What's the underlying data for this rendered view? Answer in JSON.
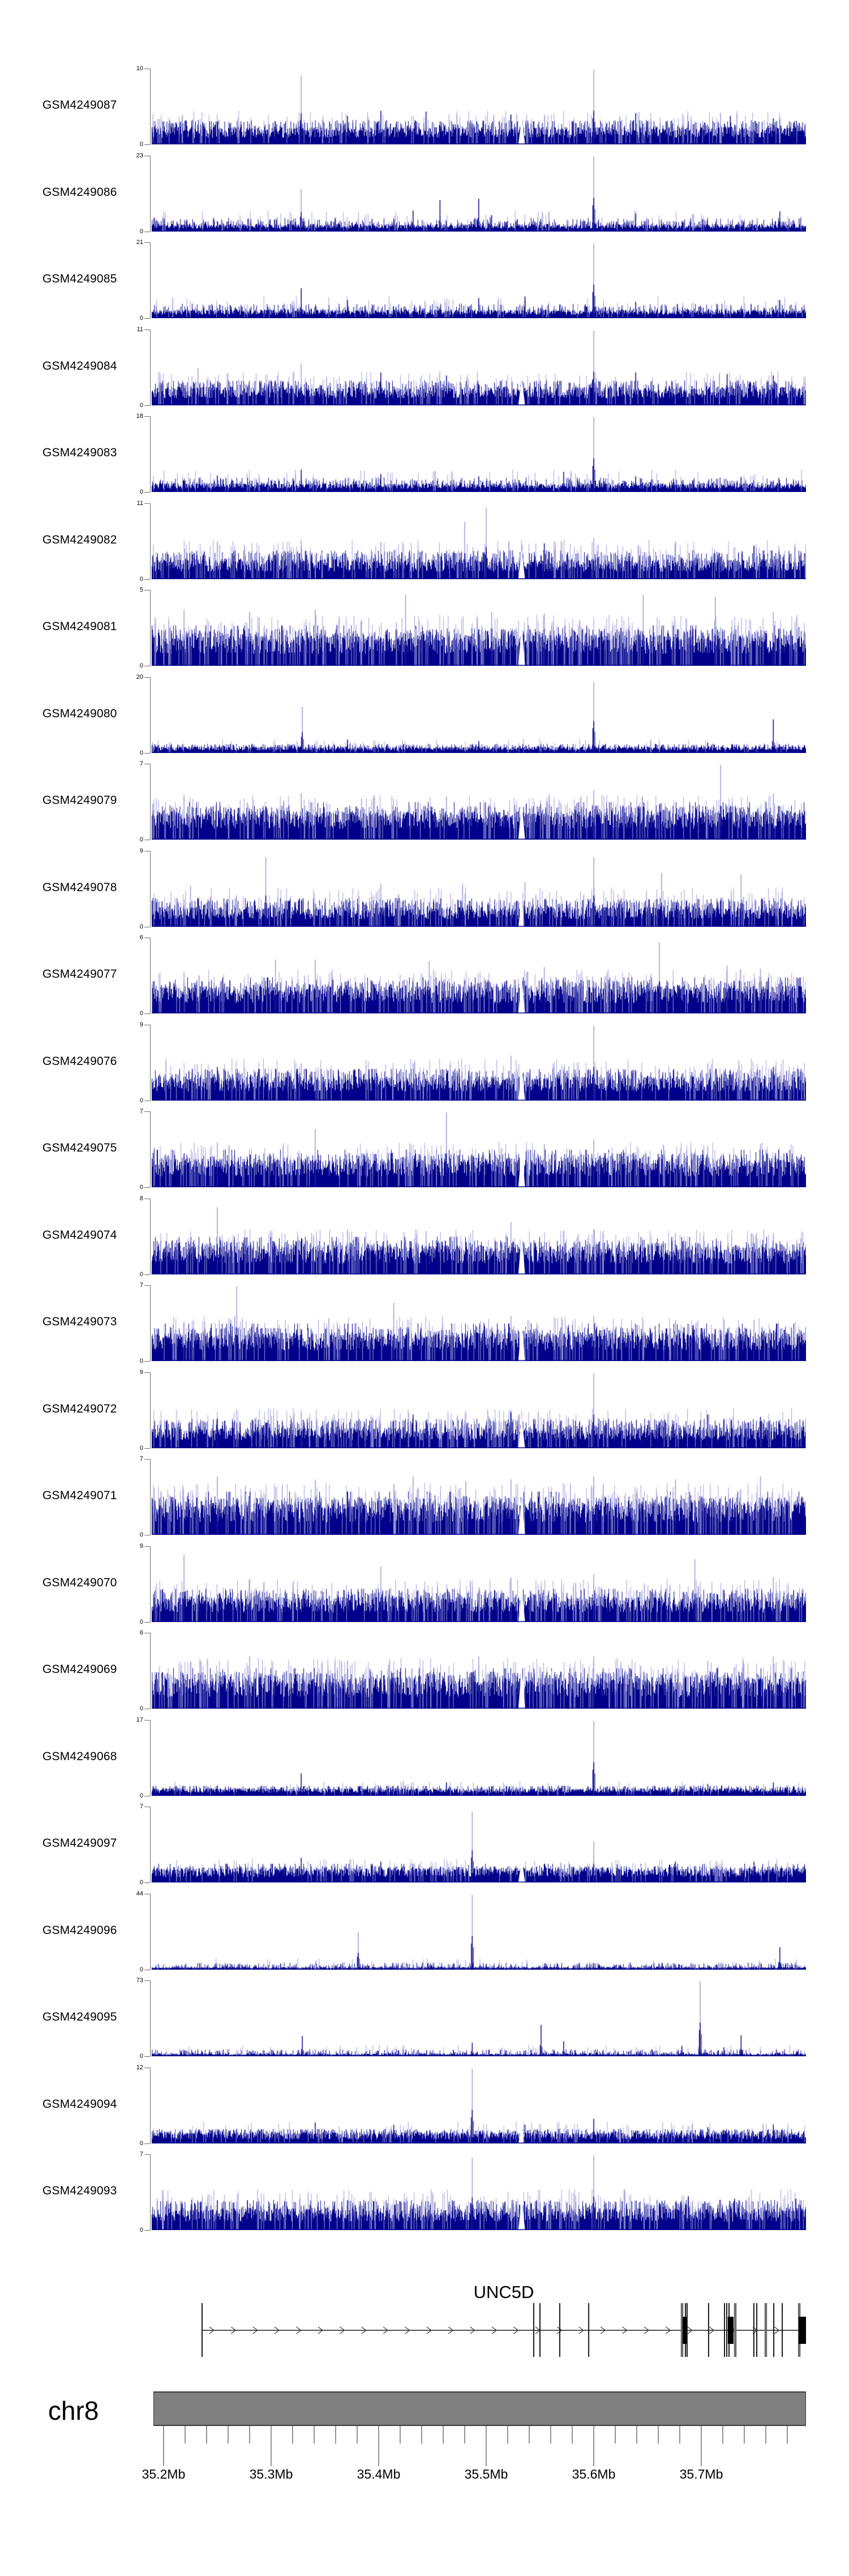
{
  "page": {
    "background": "#FFFFFF"
  },
  "colors": {
    "signal": "#00008B",
    "signal_light": "#9C9CD8",
    "axis_gray": "#707070",
    "tick": "#3C3C3C",
    "ideogram_fill": "#808080",
    "ideogram_border": "#3A3A3A",
    "gene_dark": "#1A1A1A",
    "gene_gray": "#6E6E6E",
    "text": "#000000"
  },
  "chart_data": {
    "type": "bar",
    "subtype": "genome-coverage-signal-tracks",
    "title": "",
    "xlabel": "",
    "ylabel": "",
    "zero_label": "0",
    "region": {
      "chromosome": "chr8",
      "start_mb": 35.189,
      "end_mb": 35.797,
      "unit": "Mb"
    },
    "legend": null,
    "grid": false,
    "tracks": [
      {
        "label": "GSM4249087",
        "ymax": 10,
        "ylim": [
          0,
          10
        ],
        "base": 0.16,
        "texture": "medium",
        "peaks": [
          [
            35.328,
            0.92
          ],
          [
            35.6,
            1.0
          ],
          [
            35.402,
            0.45
          ],
          [
            35.444,
            0.44
          ],
          [
            35.639,
            0.42
          ],
          [
            35.371,
            0.38
          ],
          [
            35.523,
            0.4
          ],
          [
            35.727,
            0.38
          ],
          [
            35.767,
            0.35
          ],
          [
            35.25,
            0.3
          ]
        ]
      },
      {
        "label": "GSM4249086",
        "ymax": 23,
        "ylim": [
          0,
          23
        ],
        "base": 0.07,
        "texture": "sparse",
        "peaks": [
          [
            35.328,
            0.57
          ],
          [
            35.6,
            1.0
          ],
          [
            35.457,
            0.42
          ],
          [
            35.493,
            0.44
          ],
          [
            35.432,
            0.28
          ],
          [
            35.639,
            0.24
          ],
          [
            35.773,
            0.27
          ],
          [
            35.505,
            0.22
          ],
          [
            35.25,
            0.14
          ]
        ]
      },
      {
        "label": "GSM4249085",
        "ymax": 21,
        "ylim": [
          0,
          21
        ],
        "base": 0.08,
        "texture": "sparse",
        "peaks": [
          [
            35.6,
            1.0
          ],
          [
            35.328,
            0.4
          ],
          [
            35.371,
            0.24
          ],
          [
            35.493,
            0.27
          ],
          [
            35.536,
            0.29
          ],
          [
            35.639,
            0.22
          ],
          [
            35.773,
            0.24
          ],
          [
            35.262,
            0.17
          ]
        ]
      },
      {
        "label": "GSM4249084",
        "ymax": 11,
        "ylim": [
          0,
          11
        ],
        "base": 0.17,
        "texture": "medium",
        "peaks": [
          [
            35.6,
            1.0
          ],
          [
            35.328,
            0.55
          ],
          [
            35.232,
            0.5
          ],
          [
            35.402,
            0.44
          ],
          [
            35.463,
            0.4
          ],
          [
            35.639,
            0.44
          ],
          [
            35.724,
            0.42
          ],
          [
            35.767,
            0.4
          ]
        ]
      },
      {
        "label": "GSM4249083",
        "ymax": 18,
        "ylim": [
          0,
          18
        ],
        "base": 0.08,
        "texture": "sparse",
        "peaks": [
          [
            35.6,
            1.0
          ],
          [
            35.328,
            0.3
          ],
          [
            35.25,
            0.22
          ],
          [
            35.402,
            0.24
          ],
          [
            35.493,
            0.21
          ],
          [
            35.572,
            0.27
          ],
          [
            35.639,
            0.21
          ],
          [
            35.737,
            0.2
          ]
        ]
      },
      {
        "label": "GSM4249082",
        "ymax": 11,
        "ylim": [
          0,
          11
        ],
        "base": 0.18,
        "texture": "dense",
        "peaks": [
          [
            35.5,
            0.95
          ],
          [
            35.48,
            0.77
          ],
          [
            35.328,
            0.52
          ],
          [
            35.25,
            0.5
          ],
          [
            35.402,
            0.5
          ],
          [
            35.6,
            0.55
          ],
          [
            35.676,
            0.5
          ],
          [
            35.749,
            0.45
          ],
          [
            35.554,
            0.48
          ]
        ]
      },
      {
        "label": "GSM4249081",
        "ymax": 5,
        "ylim": [
          0,
          5
        ],
        "base": 0.28,
        "texture": "vdense",
        "peaks": [
          [
            35.425,
            0.95
          ],
          [
            35.646,
            0.95
          ],
          [
            35.713,
            0.92
          ],
          [
            35.219,
            0.75
          ],
          [
            35.28,
            0.72
          ],
          [
            35.341,
            0.75
          ],
          [
            35.505,
            0.72
          ],
          [
            35.554,
            0.7
          ],
          [
            35.767,
            0.72
          ]
        ]
      },
      {
        "label": "GSM4249080",
        "ymax": 20,
        "ylim": [
          0,
          20
        ],
        "base": 0.06,
        "texture": "fine",
        "peaks": [
          [
            35.329,
            0.62
          ],
          [
            35.6,
            0.95
          ],
          [
            35.767,
            0.45
          ],
          [
            35.371,
            0.18
          ],
          [
            35.493,
            0.16
          ],
          [
            35.706,
            0.14
          ],
          [
            35.262,
            0.12
          ]
        ]
      },
      {
        "label": "GSM4249079",
        "ymax": 7,
        "ylim": [
          0,
          7
        ],
        "base": 0.26,
        "texture": "dense",
        "peaks": [
          [
            35.718,
            1.0
          ],
          [
            35.219,
            0.6
          ],
          [
            35.328,
            0.62
          ],
          [
            35.463,
            0.58
          ],
          [
            35.6,
            0.66
          ],
          [
            35.645,
            0.58
          ],
          [
            35.767,
            0.62
          ],
          [
            35.384,
            0.55
          ]
        ]
      },
      {
        "label": "GSM4249078",
        "ymax": 9,
        "ylim": [
          0,
          9
        ],
        "base": 0.18,
        "texture": "dense",
        "peaks": [
          [
            35.295,
            0.93
          ],
          [
            35.6,
            0.93
          ],
          [
            35.402,
            0.58
          ],
          [
            35.478,
            0.58
          ],
          [
            35.536,
            0.6
          ],
          [
            35.663,
            0.72
          ],
          [
            35.737,
            0.7
          ],
          [
            35.225,
            0.55
          ]
        ]
      },
      {
        "label": "GSM4249077",
        "ymax": 6,
        "ylim": [
          0,
          6
        ],
        "base": 0.25,
        "texture": "dense",
        "peaks": [
          [
            35.661,
            0.95
          ],
          [
            35.304,
            0.72
          ],
          [
            35.341,
            0.72
          ],
          [
            35.447,
            0.7
          ],
          [
            35.554,
            0.62
          ],
          [
            35.724,
            0.64
          ],
          [
            35.755,
            0.6
          ],
          [
            35.219,
            0.55
          ]
        ]
      },
      {
        "label": "GSM4249076",
        "ymax": 9,
        "ylim": [
          0,
          9
        ],
        "base": 0.22,
        "texture": "dense",
        "peaks": [
          [
            35.6,
            1.0
          ],
          [
            35.523,
            0.6
          ],
          [
            35.328,
            0.5
          ],
          [
            35.25,
            0.45
          ],
          [
            35.432,
            0.5
          ],
          [
            35.706,
            0.5
          ],
          [
            35.767,
            0.45
          ]
        ]
      },
      {
        "label": "GSM4249075",
        "ymax": 7,
        "ylim": [
          0,
          7
        ],
        "base": 0.26,
        "texture": "dense",
        "peaks": [
          [
            35.463,
            1.0
          ],
          [
            35.341,
            0.78
          ],
          [
            35.6,
            0.64
          ],
          [
            35.25,
            0.6
          ],
          [
            35.554,
            0.58
          ],
          [
            35.706,
            0.55
          ],
          [
            35.755,
            0.58
          ]
        ]
      },
      {
        "label": "GSM4249074",
        "ymax": 8,
        "ylim": [
          0,
          8
        ],
        "base": 0.26,
        "texture": "dense",
        "peaks": [
          [
            35.25,
            0.9
          ],
          [
            35.523,
            0.7
          ],
          [
            35.371,
            0.6
          ],
          [
            35.6,
            0.6
          ],
          [
            35.676,
            0.55
          ],
          [
            35.767,
            0.55
          ],
          [
            35.444,
            0.58
          ]
        ]
      },
      {
        "label": "GSM4249073",
        "ymax": 7,
        "ylim": [
          0,
          7
        ],
        "base": 0.26,
        "texture": "dense",
        "peaks": [
          [
            35.268,
            1.0
          ],
          [
            35.414,
            0.78
          ],
          [
            35.523,
            0.6
          ],
          [
            35.6,
            0.6
          ],
          [
            35.676,
            0.55
          ],
          [
            35.749,
            0.55
          ],
          [
            35.219,
            0.52
          ]
        ]
      },
      {
        "label": "GSM4249072",
        "ymax": 9,
        "ylim": [
          0,
          9
        ],
        "base": 0.19,
        "texture": "dense",
        "peaks": [
          [
            35.6,
            1.0
          ],
          [
            35.328,
            0.5
          ],
          [
            35.432,
            0.45
          ],
          [
            35.523,
            0.48
          ],
          [
            35.25,
            0.4
          ],
          [
            35.706,
            0.45
          ],
          [
            35.755,
            0.42
          ]
        ]
      },
      {
        "label": "GSM4249071",
        "ymax": 7,
        "ylim": [
          0,
          7
        ],
        "base": 0.3,
        "texture": "vdense",
        "peaks": [
          [
            35.25,
            0.78
          ],
          [
            35.341,
            0.74
          ],
          [
            35.432,
            0.78
          ],
          [
            35.523,
            0.74
          ],
          [
            35.6,
            0.78
          ],
          [
            35.676,
            0.74
          ],
          [
            35.755,
            0.78
          ],
          [
            35.481,
            0.72
          ]
        ]
      },
      {
        "label": "GSM4249070",
        "ymax": 9,
        "ylim": [
          0,
          9
        ],
        "base": 0.23,
        "texture": "dense",
        "peaks": [
          [
            35.219,
            0.9
          ],
          [
            35.402,
            0.74
          ],
          [
            35.694,
            0.84
          ],
          [
            35.523,
            0.6
          ],
          [
            35.6,
            0.64
          ],
          [
            35.767,
            0.6
          ],
          [
            35.28,
            0.58
          ]
        ]
      },
      {
        "label": "GSM4249069",
        "ymax": 6,
        "ylim": [
          0,
          6
        ],
        "base": 0.28,
        "texture": "vdense",
        "peaks": [
          [
            35.28,
            0.7
          ],
          [
            35.371,
            0.64
          ],
          [
            35.493,
            0.7
          ],
          [
            35.6,
            0.7
          ],
          [
            35.706,
            0.64
          ],
          [
            35.767,
            0.7
          ],
          [
            35.225,
            0.62
          ]
        ]
      },
      {
        "label": "GSM4249068",
        "ymax": 17,
        "ylim": [
          0,
          17
        ],
        "base": 0.07,
        "texture": "fine",
        "peaks": [
          [
            35.6,
            1.0
          ],
          [
            35.328,
            0.3
          ],
          [
            35.463,
            0.18
          ],
          [
            35.706,
            0.16
          ],
          [
            35.767,
            0.18
          ],
          [
            35.25,
            0.14
          ]
        ]
      },
      {
        "label": "GSM4249097",
        "ymax": 7,
        "ylim": [
          0,
          7
        ],
        "base": 0.13,
        "texture": "finedense",
        "peaks": [
          [
            35.487,
            0.95
          ],
          [
            35.6,
            0.55
          ],
          [
            35.328,
            0.33
          ],
          [
            35.402,
            0.28
          ],
          [
            35.676,
            0.28
          ],
          [
            35.749,
            0.28
          ],
          [
            35.554,
            0.25
          ]
        ]
      },
      {
        "label": "GSM4249096",
        "ymax": 44,
        "ylim": [
          0,
          44
        ],
        "base": 0.025,
        "texture": "fine",
        "peaks": [
          [
            35.381,
            0.5
          ],
          [
            35.487,
            1.0
          ],
          [
            35.773,
            0.3
          ],
          [
            35.6,
            0.09
          ],
          [
            35.28,
            0.06
          ],
          [
            35.706,
            0.06
          ]
        ]
      },
      {
        "label": "GSM4249095",
        "ymax": 73,
        "ylim": [
          0,
          73
        ],
        "base": 0.025,
        "texture": "fine",
        "peaks": [
          [
            35.329,
            0.27
          ],
          [
            35.487,
            0.18
          ],
          [
            35.551,
            0.42
          ],
          [
            35.572,
            0.2
          ],
          [
            35.682,
            0.14
          ],
          [
            35.699,
            1.0
          ],
          [
            35.721,
            0.12
          ],
          [
            35.737,
            0.28
          ]
        ]
      },
      {
        "label": "GSM4249094",
        "ymax": 12,
        "ylim": [
          0,
          12
        ],
        "base": 0.1,
        "texture": "finedense",
        "peaks": [
          [
            35.487,
            1.0
          ],
          [
            35.6,
            0.33
          ],
          [
            35.341,
            0.28
          ],
          [
            35.414,
            0.25
          ],
          [
            35.536,
            0.25
          ],
          [
            35.706,
            0.22
          ],
          [
            35.767,
            0.25
          ]
        ]
      },
      {
        "label": "GSM4249093",
        "ymax": 7,
        "ylim": [
          0,
          7
        ],
        "base": 0.2,
        "texture": "dense",
        "peaks": [
          [
            35.487,
            0.97
          ],
          [
            35.6,
            1.0
          ],
          [
            35.688,
            0.45
          ],
          [
            35.731,
            0.42
          ],
          [
            35.788,
            0.42
          ],
          [
            35.25,
            0.4
          ],
          [
            35.371,
            0.4
          ]
        ]
      }
    ],
    "gene_track": {
      "gene": "UNC5D",
      "strand": "+",
      "start_mb": 35.2358,
      "end_mb": 35.7974,
      "exons": [
        {
          "mb": 35.2358,
          "wide": false
        },
        {
          "mb": 35.5442,
          "wide": false
        },
        {
          "mb": 35.55,
          "wide": false
        },
        {
          "mb": 35.5684,
          "wide": false
        },
        {
          "mb": 35.5953,
          "wide": false
        },
        {
          "mb": 35.6821,
          "wide": true
        },
        {
          "mb": 35.6853,
          "wide": false
        },
        {
          "mb": 35.6868,
          "wide": false
        },
        {
          "mb": 35.7068,
          "wide": false
        },
        {
          "mb": 35.7216,
          "wide": false
        },
        {
          "mb": 35.7237,
          "wide": false
        },
        {
          "mb": 35.7258,
          "wide": false
        },
        {
          "mb": 35.7316,
          "wide": true
        },
        {
          "mb": 35.7489,
          "wide": false
        },
        {
          "mb": 35.7516,
          "wide": false
        },
        {
          "mb": 35.76,
          "wide": true
        },
        {
          "mb": 35.7674,
          "wide": false
        },
        {
          "mb": 35.7753,
          "wide": false
        },
        {
          "mb": 35.7911,
          "wide": true
        }
      ],
      "cds_boxes_mb": [
        [
          35.6826,
          35.6863
        ],
        [
          35.7247,
          35.73
        ],
        [
          35.7905,
          35.7974
        ]
      ]
    },
    "ideogram": {
      "chromosome_label": "chr8"
    },
    "axis": {
      "major_ticks_mb": [
        35.2,
        35.3,
        35.4,
        35.5,
        35.6,
        35.7
      ],
      "labels": [
        "35.2Mb",
        "35.3Mb",
        "35.4Mb",
        "35.5Mb",
        "35.6Mb",
        "35.7Mb"
      ],
      "minor_tick_step_mb": 0.02,
      "minor_tick_start_mb": 35.2,
      "minor_tick_end_mb": 35.78
    }
  }
}
